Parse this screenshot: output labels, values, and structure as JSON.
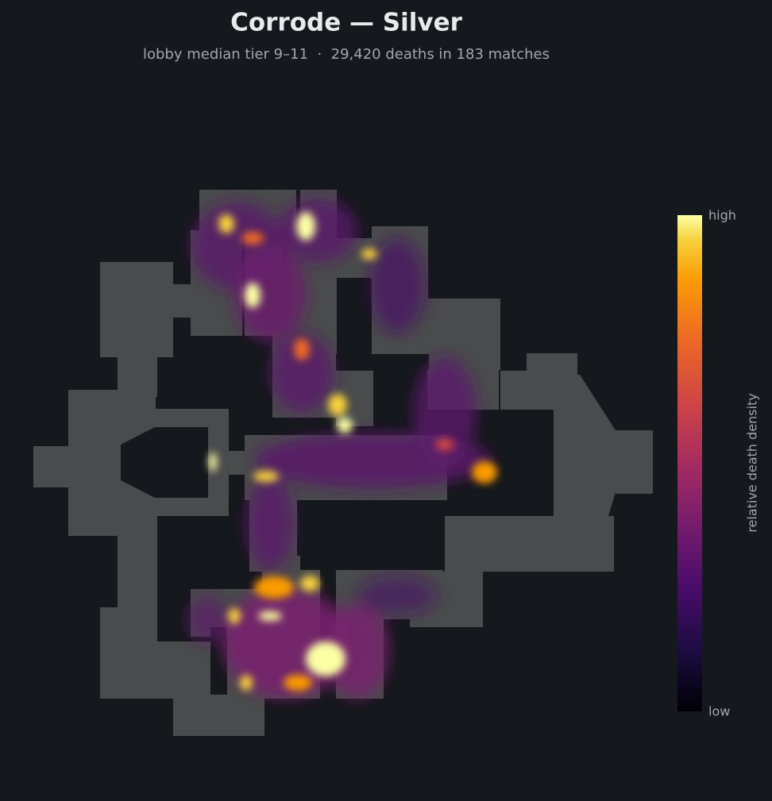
{
  "header": {
    "title": "Corrode — Silver",
    "subtitle": "lobby median tier 9–11  ·  29,420 deaths in 183 matches"
  },
  "colorbar": {
    "high": "high",
    "low": "low",
    "label": "relative death density"
  }
}
